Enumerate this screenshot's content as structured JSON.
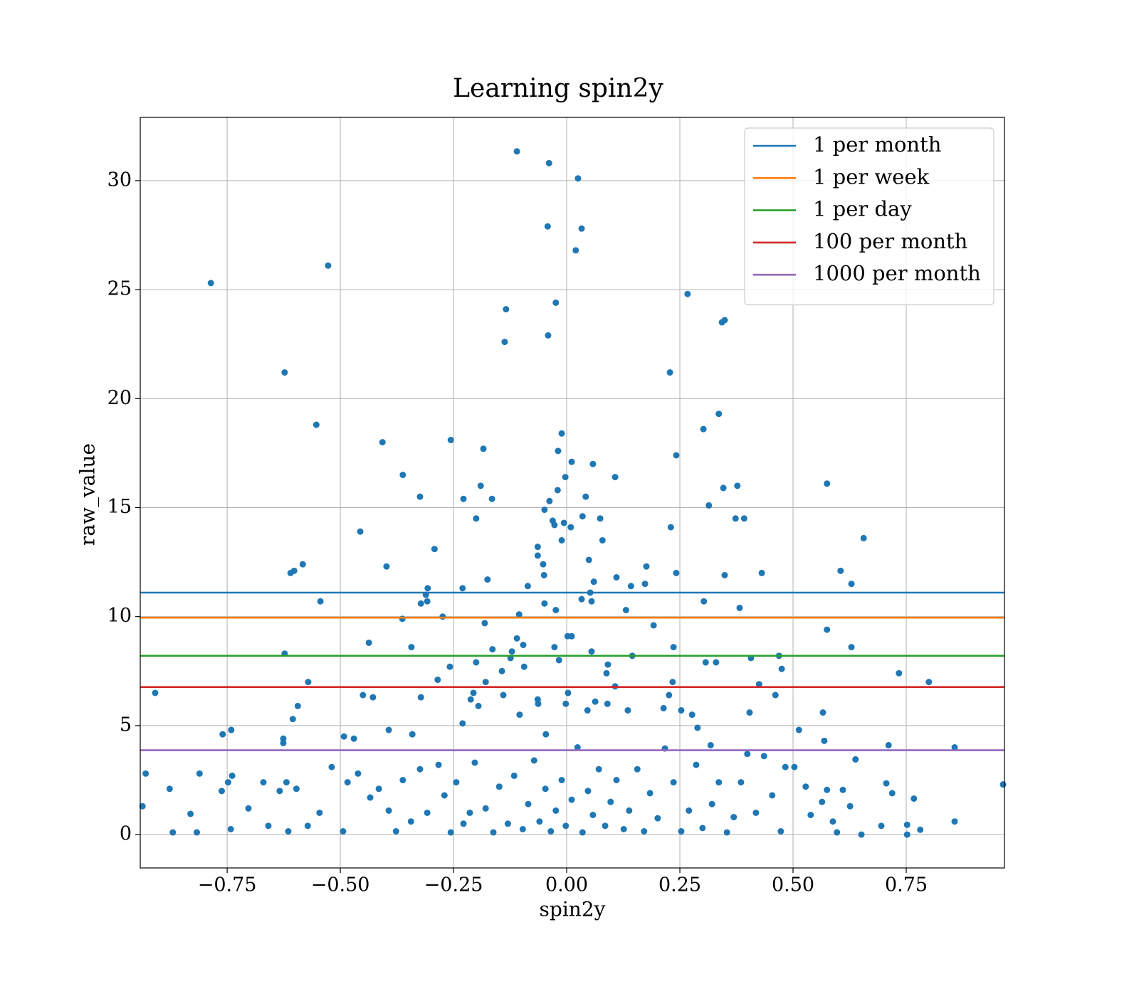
{
  "chart_data": {
    "type": "scatter",
    "title": "Learning spin2y",
    "x_label": "spin2y",
    "y_label": "raw_value",
    "color": "#1f77b4",
    "grid": true,
    "legend": "upper right",
    "xlim": [
      -0.942,
      0.967
    ],
    "ylim": [
      -1.53,
      32.9
    ],
    "xticks": [
      {
        "value": -0.75,
        "label": "−0.75"
      },
      {
        "value": -0.5,
        "label": "−0.50"
      },
      {
        "value": -0.25,
        "label": "−0.25"
      },
      {
        "value": 0,
        "label": "0.00"
      },
      0.25,
      {
        "value": 0.5,
        "label": "0.50"
      },
      0.75
    ],
    "yticks": [
      0,
      5,
      10,
      15,
      20,
      25,
      30
    ],
    "hlines": [
      {
        "name": "1 per month",
        "color": "#1f77b4",
        "value": 11.1
      },
      {
        "name": "1 per week",
        "color": "#ff7f0e",
        "value": 9.95
      },
      {
        "name": "1 per day",
        "color": "#2ca02c",
        "value": 8.2
      },
      {
        "name": "100 per month",
        "color": "#d62728",
        "value": 6.77
      },
      {
        "name": "1000 per month",
        "color": "#9467bd",
        "value": 3.87
      }
    ],
    "x": [
      -0.11,
      -0.039,
      0.025,
      -0.042,
      0.033,
      0.02,
      -0.527,
      -0.786,
      0.267,
      -0.024,
      -0.134,
      0.349,
      0.343,
      -0.041,
      -0.137,
      -0.623,
      0.228,
      0.336,
      -0.553,
      0.302,
      -0.011,
      -0.256,
      -0.407,
      -0.184,
      -0.019,
      0.242,
      0.575,
      0.011,
      0.058,
      -0.362,
      0.107,
      -0.003,
      -0.19,
      0.377,
      0.346,
      -0.02,
      -0.324,
      0.042,
      -0.228,
      -0.165,
      -0.038,
      0.314,
      -0.049,
      0.035,
      0.074,
      -0.2,
      0.373,
      0.392,
      -0.031,
      -0.006,
      -0.027,
      0.23,
      0.009,
      -0.456,
      0.656,
      -0.011,
      0.079,
      -0.064,
      -0.292,
      -0.064,
      0.049,
      -0.052,
      -0.583,
      -0.398,
      0.176,
      -0.602,
      -0.61,
      0.605,
      0.431,
      0.242,
      -0.05,
      0.349,
      0.629,
      -0.175,
      0.11,
      0.06,
      0.173,
      -0.23,
      -0.307,
      -0.086,
      0.142,
      0.052,
      -0.544,
      -0.311,
      -0.308,
      -0.322,
      0.303,
      0.033,
      0.055,
      -0.049,
      0.382,
      0.131,
      -0.024,
      -0.105,
      -0.274,
      -0.363,
      -0.181,
      0.575,
      0.192,
      0.002,
      0.011,
      -0.11,
      -0.096,
      -0.437,
      -0.343,
      -0.027,
      0.236,
      0.629,
      -0.164,
      -0.121,
      0.055,
      -0.623,
      0.145,
      0.469,
      0.407,
      -0.017,
      -0.124,
      0.091,
      0.307,
      0.33,
      -0.2,
      -0.258,
      -0.094,
      0.475,
      -0.143,
      0.088,
      0.734,
      0.8,
      -0.285,
      -0.571,
      -0.179,
      0.234,
      0.107,
      0.425,
      -0.909,
      0.003,
      -0.206,
      -0.45,
      -0.428,
      -0.322,
      -0.14,
      0.226,
      0.461,
      -0.064,
      -0.063,
      -0.212,
      0.063,
      -0.594,
      -0.195,
      0.09,
      -0.002,
      0.046,
      0.214,
      0.253,
      0.135,
      0.404,
      0.566,
      -0.605,
      0.277,
      -0.104,
      -0.23,
      -0.741,
      -0.393,
      0.513,
      0.289,
      -0.76,
      -0.046,
      -0.341,
      -0.626,
      -0.626,
      -0.492,
      0.569,
      0.711,
      0.857,
      -0.47,
      0.318,
      -0.937,
      -0.93,
      -0.877,
      -0.87,
      -0.831,
      -0.817,
      -0.811,
      -0.762,
      -0.748,
      -0.739,
      -0.742,
      -0.703,
      -0.67,
      -0.659,
      -0.634,
      -0.619,
      -0.615,
      -0.597,
      -0.572,
      -0.546,
      -0.519,
      -0.494,
      -0.484,
      -0.461,
      -0.434,
      -0.415,
      -0.393,
      -0.377,
      -0.362,
      -0.344,
      -0.324,
      -0.308,
      -0.283,
      -0.27,
      -0.256,
      -0.244,
      -0.228,
      -0.214,
      -0.203,
      -0.179,
      -0.162,
      -0.149,
      -0.13,
      -0.116,
      -0.097,
      -0.085,
      -0.072,
      -0.06,
      -0.047,
      -0.035,
      -0.024,
      -0.011,
      -0.002,
      0.011,
      0.024,
      0.035,
      0.047,
      0.058,
      0.071,
      0.085,
      0.097,
      0.11,
      0.126,
      0.138,
      0.156,
      0.171,
      0.184,
      0.201,
      0.217,
      0.236,
      0.253,
      0.27,
      0.286,
      0.3,
      0.321,
      0.336,
      0.354,
      0.369,
      0.385,
      0.399,
      0.418,
      0.436,
      0.454,
      0.473,
      0.483,
      0.503,
      0.528,
      0.539,
      0.564,
      0.575,
      0.588,
      0.597,
      0.61,
      0.626,
      0.638,
      0.651,
      0.695,
      0.706,
      0.719,
      0.752,
      0.752,
      0.767,
      0.781,
      0.857,
      0.964
    ],
    "values": [
      31.34,
      30.8,
      30.1,
      27.9,
      27.8,
      26.8,
      26.1,
      25.3,
      24.8,
      24.4,
      24.1,
      23.6,
      23.5,
      22.9,
      22.6,
      21.2,
      21.2,
      19.3,
      18.8,
      18.6,
      18.4,
      18.1,
      18.0,
      17.7,
      17.6,
      17.4,
      16.1,
      17.1,
      17.0,
      16.5,
      16.4,
      16.4,
      16.0,
      16.0,
      15.9,
      15.8,
      15.5,
      15.5,
      15.4,
      15.4,
      15.3,
      15.1,
      14.9,
      14.6,
      14.5,
      14.5,
      14.5,
      14.5,
      14.4,
      14.3,
      14.2,
      14.1,
      14.1,
      13.9,
      13.6,
      13.5,
      13.5,
      13.2,
      13.1,
      12.8,
      12.6,
      12.4,
      12.4,
      12.3,
      12.3,
      12.1,
      12.0,
      12.1,
      12.0,
      12.0,
      11.9,
      11.9,
      11.5,
      11.7,
      11.8,
      11.6,
      11.5,
      11.3,
      11.3,
      11.4,
      11.4,
      11.1,
      10.7,
      11.0,
      10.7,
      10.6,
      10.7,
      10.8,
      10.7,
      10.6,
      10.4,
      10.3,
      10.3,
      10.1,
      10.0,
      9.9,
      9.7,
      9.4,
      9.6,
      9.1,
      9.1,
      9.0,
      8.7,
      8.8,
      8.6,
      8.6,
      8.6,
      8.6,
      8.5,
      8.4,
      8.4,
      8.3,
      8.2,
      8.2,
      8.1,
      8.0,
      8.1,
      7.8,
      7.9,
      7.9,
      7.9,
      7.7,
      7.7,
      7.6,
      7.5,
      7.4,
      7.4,
      7.0,
      7.1,
      7.0,
      7.0,
      7.0,
      6.8,
      6.9,
      6.5,
      6.5,
      6.5,
      6.4,
      6.3,
      6.3,
      6.4,
      6.4,
      6.4,
      6.2,
      6.0,
      6.2,
      6.1,
      5.9,
      5.9,
      6.0,
      6.0,
      5.7,
      5.8,
      5.7,
      5.7,
      5.6,
      5.6,
      5.3,
      5.5,
      5.5,
      5.1,
      4.8,
      4.8,
      4.8,
      4.9,
      4.6,
      4.6,
      4.6,
      4.4,
      4.2,
      4.5,
      4.3,
      4.1,
      4.0,
      4.4,
      4.1,
      1.3,
      2.8,
      2.1,
      0.1,
      0.95,
      0.1,
      2.8,
      2.0,
      2.4,
      2.7,
      0.25,
      1.2,
      2.4,
      0.4,
      2.0,
      2.4,
      0.15,
      2.1,
      0.4,
      1.0,
      3.1,
      0.15,
      2.4,
      2.8,
      1.7,
      2.1,
      1.1,
      0.15,
      2.5,
      0.6,
      3.0,
      1.0,
      3.2,
      1.8,
      0.1,
      2.4,
      0.5,
      1.0,
      3.3,
      1.2,
      0.1,
      2.2,
      0.5,
      2.7,
      0.25,
      1.4,
      3.4,
      0.6,
      2.1,
      0.15,
      1.1,
      2.5,
      0.4,
      1.6,
      4.0,
      0.1,
      2.0,
      0.9,
      3.0,
      0.4,
      1.5,
      2.5,
      0.25,
      1.1,
      3.0,
      0.15,
      1.9,
      0.75,
      3.95,
      2.4,
      0.15,
      1.1,
      3.2,
      0.3,
      1.4,
      2.4,
      0.1,
      0.8,
      2.4,
      3.7,
      1.0,
      3.6,
      1.8,
      0.15,
      3.1,
      3.1,
      2.2,
      0.9,
      1.5,
      2.05,
      0.6,
      0.1,
      2.05,
      1.3,
      3.45,
      0.0,
      0.4,
      2.35,
      1.9,
      0.0,
      0.45,
      1.65,
      0.22,
      0.6,
      2.3
    ]
  }
}
